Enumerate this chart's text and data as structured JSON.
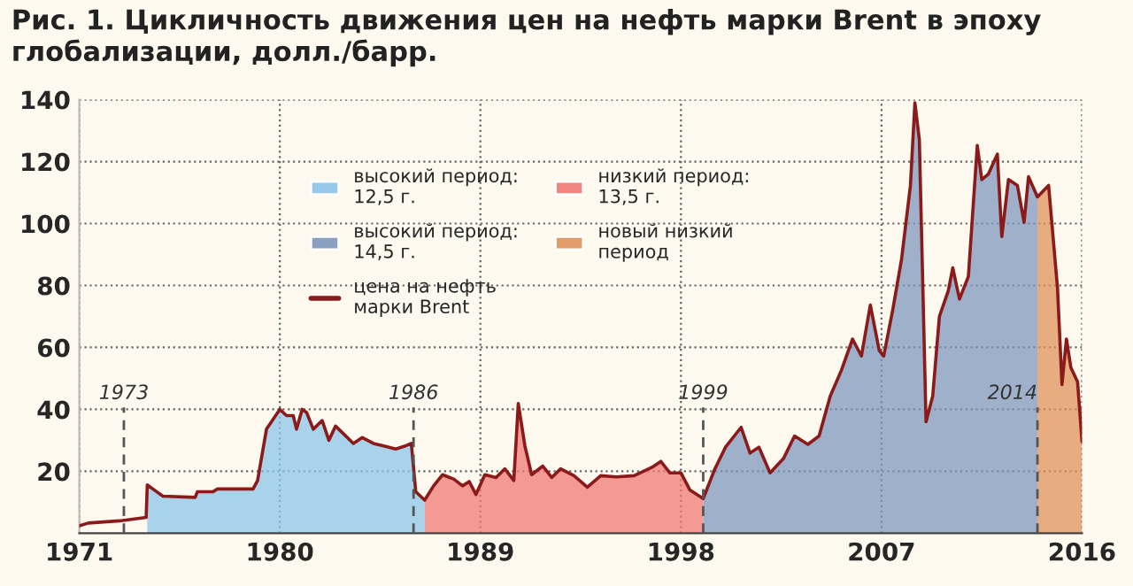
{
  "chart_data": {
    "type": "line",
    "title": "Рис. 1. Цикличность движения цен на нефть марки Brent в эпоху глобализации, долл./барр.",
    "xlim": [
      1971,
      2016
    ],
    "xticks": [
      1971,
      1980,
      1989,
      1998,
      2007,
      2016
    ],
    "ylim": [
      0,
      140
    ],
    "yticks": [
      20,
      40,
      60,
      80,
      100,
      120,
      140
    ],
    "grid": true,
    "legend": "top",
    "ref_lines": [
      {
        "axis": "x",
        "value": 1973,
        "label": "1973",
        "color": "#555555",
        "line_style": "dashed"
      },
      {
        "axis": "x",
        "value": 1986,
        "label": "1986",
        "color": "#555555",
        "line_style": "dashed"
      },
      {
        "axis": "x",
        "value": 1999,
        "label": "1999",
        "color": "#555555",
        "line_style": "dashed"
      },
      {
        "axis": "x",
        "value": 2014,
        "label": "2014",
        "color": "#555555",
        "line_style": "dashed"
      }
    ],
    "series": [
      {
        "name": "высокий период:\n12,5 г.",
        "type": "area",
        "color": "#8cc4ea",
        "x": [
          1974.05,
          1974.3,
          1974.75,
          1976.2,
          1976.3,
          1977,
          1977.2,
          1978.8,
          1979,
          1979.4,
          1980,
          1980.3,
          1980.6,
          1980.75,
          1981,
          1981.2,
          1981.5,
          1981.9,
          1982.2,
          1982.5,
          1982.9,
          1983.3,
          1983.7,
          1984.2,
          1984.7,
          1985.2,
          1985.6,
          1985.9,
          1986.1,
          1986.5
        ],
        "values": [
          15.6,
          14.3,
          12,
          11.6,
          13.4,
          13.4,
          14.3,
          14.3,
          17,
          33.6,
          40,
          38,
          38,
          33.6,
          40,
          39,
          33.6,
          36.4,
          30,
          34.6,
          31.8,
          29,
          30.9,
          29,
          28.1,
          27.2,
          28.1,
          29,
          13.4,
          10.7
        ]
      },
      {
        "name": "высокий период:\n14,5 г.",
        "type": "area",
        "color": "#7f97bd",
        "x": [
          1999,
          1999.5,
          2000,
          2000.7,
          2001.1,
          2001.5,
          2002,
          2002.6,
          2003.1,
          2003.7,
          2004.2,
          2004.7,
          2005.2,
          2005.7,
          2006.1,
          2006.5,
          2006.9,
          2007.1,
          2007.5,
          2007.9,
          2008.3,
          2008.5,
          2008.7,
          2009,
          2009.3,
          2009.6,
          2010,
          2010.2,
          2010.5,
          2010.9,
          2011.3,
          2011.5,
          2011.8,
          2012.2,
          2012.4,
          2012.7,
          2013.1,
          2013.4,
          2013.6,
          2014
        ],
        "values": [
          11.2,
          20.4,
          27.8,
          34.2,
          25.9,
          27.8,
          19.5,
          24.1,
          31.4,
          28.7,
          31.4,
          44.3,
          52.6,
          62.7,
          57.2,
          73.7,
          59,
          57.2,
          71.9,
          88.4,
          112.3,
          139,
          127,
          36,
          44.3,
          70,
          78.3,
          85.7,
          75.6,
          82.9,
          125.2,
          114.2,
          116,
          122.4,
          95.8,
          114.2,
          112.3,
          100.4,
          115.1,
          108.6
        ]
      },
      {
        "name": "цена на нефть\nмарки Brent",
        "color": "#8b1a1a",
        "x": [
          1971,
          1971.4,
          1972.8,
          1974.0,
          1974.05,
          1974.3,
          1974.75,
          1976.2,
          1976.3,
          1977,
          1977.2,
          1978.8,
          1979,
          1979.4,
          1980,
          1980.3,
          1980.6,
          1980.75,
          1981,
          1981.2,
          1981.5,
          1981.9,
          1982.2,
          1982.5,
          1982.9,
          1983.3,
          1983.7,
          1984.2,
          1984.7,
          1985.2,
          1985.6,
          1985.9,
          1986.1,
          1986.5,
          1986.9,
          1987.3,
          1987.8,
          1988.2,
          1988.5,
          1988.8,
          1989.2,
          1989.7,
          1990.1,
          1990.5,
          1990.7,
          1991,
          1991.3,
          1991.8,
          1992.2,
          1992.6,
          1993.2,
          1993.8,
          1994.4,
          1995.1,
          1995.9,
          1996.7,
          1997.1,
          1997.5,
          1998,
          1998.4,
          1999,
          1999.5,
          2000,
          2000.7,
          2001.1,
          2001.5,
          2002,
          2002.6,
          2003.1,
          2003.7,
          2004.2,
          2004.7,
          2005.2,
          2005.7,
          2006.1,
          2006.5,
          2006.9,
          2007.1,
          2007.5,
          2007.9,
          2008.3,
          2008.5,
          2008.7,
          2009,
          2009.3,
          2009.6,
          2010,
          2010.2,
          2010.5,
          2010.9,
          2011.3,
          2011.5,
          2011.8,
          2012.2,
          2012.4,
          2012.7,
          2013.1,
          2013.4,
          2013.6,
          2014,
          2014.5,
          2014.9,
          2015.1,
          2015.3,
          2015.5,
          2015.8,
          2016
        ],
        "values": [
          2.4,
          3.3,
          4,
          5.1,
          15.6,
          14.3,
          12,
          11.6,
          13.4,
          13.4,
          14.3,
          14.3,
          17,
          33.6,
          40,
          38,
          38,
          33.6,
          40,
          39,
          33.6,
          36.4,
          30,
          34.6,
          31.8,
          29,
          30.9,
          29,
          28.1,
          27.2,
          28.1,
          29,
          13.4,
          10.7,
          15.3,
          18.9,
          17.5,
          15.3,
          16.7,
          12.5,
          18.9,
          18,
          20.8,
          17,
          41.9,
          28.1,
          18.9,
          21.7,
          18,
          20.8,
          18.6,
          14.9,
          18.6,
          18.2,
          18.6,
          21.3,
          23.2,
          19.5,
          19.5,
          14,
          11.2,
          20.4,
          27.8,
          34.2,
          25.9,
          27.8,
          19.5,
          24.1,
          31.4,
          28.7,
          31.4,
          44.3,
          52.6,
          62.7,
          57.2,
          73.7,
          59,
          57.2,
          71.9,
          88.4,
          112.3,
          139,
          127,
          36,
          44.3,
          70,
          78.3,
          85.7,
          75.6,
          82.9,
          125.2,
          114.2,
          116,
          122.4,
          95.8,
          114.2,
          112.3,
          100.4,
          115.1,
          108.6,
          112.3,
          79.2,
          48,
          62.7,
          53.5,
          48.9,
          29.6
        ]
      },
      {
        "name": "низкий период:\n13,5 г.",
        "type": "area",
        "color": "#f07a76",
        "x": [
          1986.5,
          1986.9,
          1987.3,
          1987.8,
          1988.2,
          1988.5,
          1988.8,
          1989.2,
          1989.7,
          1990.1,
          1990.5,
          1990.7,
          1991,
          1991.3,
          1991.8,
          1992.2,
          1992.6,
          1993.2,
          1993.8,
          1994.4,
          1995.1,
          1995.9,
          1996.7,
          1997.1,
          1997.5,
          1998,
          1998.4,
          1999
        ],
        "values": [
          10.7,
          15.3,
          18.9,
          17.5,
          15.3,
          16.7,
          12.5,
          18.9,
          18,
          20.8,
          17,
          41.9,
          28.1,
          18.9,
          21.7,
          18,
          20.8,
          18.6,
          14.9,
          18.6,
          18.2,
          18.6,
          21.3,
          23.2,
          19.5,
          19.5,
          14,
          11.2
        ]
      },
      {
        "name": "новый низкий\nпериод",
        "type": "area",
        "color": "#e0915c",
        "x": [
          2014,
          2014.5,
          2014.9,
          2015.1,
          2015.3,
          2015.5,
          2015.8,
          2016
        ],
        "values": [
          108.6,
          112.3,
          79.2,
          48,
          62.7,
          53.5,
          48.9,
          29.6
        ]
      }
    ]
  }
}
